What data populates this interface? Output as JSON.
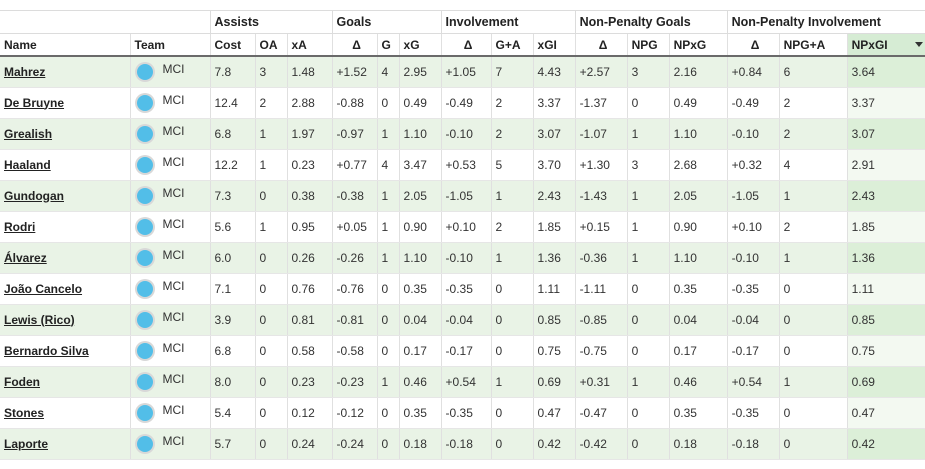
{
  "header_groups": {
    "assists": "Assists",
    "goals": "Goals",
    "involvement": "Involvement",
    "npg": "Non-Penalty Goals",
    "npi": "Non-Penalty Involvement"
  },
  "columns": {
    "name": "Name",
    "team": "Team",
    "cost": "Cost",
    "oa": "OA",
    "xa": "xA",
    "g_delta": "Δ",
    "g": "G",
    "xg": "xG",
    "i_delta": "Δ",
    "ga": "G+A",
    "xgi": "xGI",
    "npg_delta": "Δ",
    "npg": "NPG",
    "npxg": "NPxG",
    "npi_delta": "Δ",
    "npga": "NPG+A",
    "npxgi": "NPxGI"
  },
  "sorted_column": "NPxGI",
  "team_badge_color": "#52bee8",
  "rows": [
    {
      "name": "Mahrez",
      "team": "MCI",
      "cost": "7.8",
      "oa": "3",
      "xa": "1.48",
      "g_delta": "+1.52",
      "g": "4",
      "xg": "2.95",
      "i_delta": "+1.05",
      "ga": "7",
      "xgi": "4.43",
      "npg_delta": "+2.57",
      "npg": "3",
      "npxg": "2.16",
      "npi_delta": "+0.84",
      "npga": "6",
      "npxgi": "3.64"
    },
    {
      "name": "De Bruyne",
      "team": "MCI",
      "cost": "12.4",
      "oa": "2",
      "xa": "2.88",
      "g_delta": "-0.88",
      "g": "0",
      "xg": "0.49",
      "i_delta": "-0.49",
      "ga": "2",
      "xgi": "3.37",
      "npg_delta": "-1.37",
      "npg": "0",
      "npxg": "0.49",
      "npi_delta": "-0.49",
      "npga": "2",
      "npxgi": "3.37"
    },
    {
      "name": "Grealish",
      "team": "MCI",
      "cost": "6.8",
      "oa": "1",
      "xa": "1.97",
      "g_delta": "-0.97",
      "g": "1",
      "xg": "1.10",
      "i_delta": "-0.10",
      "ga": "2",
      "xgi": "3.07",
      "npg_delta": "-1.07",
      "npg": "1",
      "npxg": "1.10",
      "npi_delta": "-0.10",
      "npga": "2",
      "npxgi": "3.07"
    },
    {
      "name": "Haaland",
      "team": "MCI",
      "cost": "12.2",
      "oa": "1",
      "xa": "0.23",
      "g_delta": "+0.77",
      "g": "4",
      "xg": "3.47",
      "i_delta": "+0.53",
      "ga": "5",
      "xgi": "3.70",
      "npg_delta": "+1.30",
      "npg": "3",
      "npxg": "2.68",
      "npi_delta": "+0.32",
      "npga": "4",
      "npxgi": "2.91"
    },
    {
      "name": "Gundogan",
      "team": "MCI",
      "cost": "7.3",
      "oa": "0",
      "xa": "0.38",
      "g_delta": "-0.38",
      "g": "1",
      "xg": "2.05",
      "i_delta": "-1.05",
      "ga": "1",
      "xgi": "2.43",
      "npg_delta": "-1.43",
      "npg": "1",
      "npxg": "2.05",
      "npi_delta": "-1.05",
      "npga": "1",
      "npxgi": "2.43"
    },
    {
      "name": "Rodri",
      "team": "MCI",
      "cost": "5.6",
      "oa": "1",
      "xa": "0.95",
      "g_delta": "+0.05",
      "g": "1",
      "xg": "0.90",
      "i_delta": "+0.10",
      "ga": "2",
      "xgi": "1.85",
      "npg_delta": "+0.15",
      "npg": "1",
      "npxg": "0.90",
      "npi_delta": "+0.10",
      "npga": "2",
      "npxgi": "1.85"
    },
    {
      "name": "Álvarez",
      "team": "MCI",
      "cost": "6.0",
      "oa": "0",
      "xa": "0.26",
      "g_delta": "-0.26",
      "g": "1",
      "xg": "1.10",
      "i_delta": "-0.10",
      "ga": "1",
      "xgi": "1.36",
      "npg_delta": "-0.36",
      "npg": "1",
      "npxg": "1.10",
      "npi_delta": "-0.10",
      "npga": "1",
      "npxgi": "1.36"
    },
    {
      "name": "João Cancelo",
      "team": "MCI",
      "cost": "7.1",
      "oa": "0",
      "xa": "0.76",
      "g_delta": "-0.76",
      "g": "0",
      "xg": "0.35",
      "i_delta": "-0.35",
      "ga": "0",
      "xgi": "1.11",
      "npg_delta": "-1.11",
      "npg": "0",
      "npxg": "0.35",
      "npi_delta": "-0.35",
      "npga": "0",
      "npxgi": "1.11"
    },
    {
      "name": "Lewis (Rico)",
      "team": "MCI",
      "cost": "3.9",
      "oa": "0",
      "xa": "0.81",
      "g_delta": "-0.81",
      "g": "0",
      "xg": "0.04",
      "i_delta": "-0.04",
      "ga": "0",
      "xgi": "0.85",
      "npg_delta": "-0.85",
      "npg": "0",
      "npxg": "0.04",
      "npi_delta": "-0.04",
      "npga": "0",
      "npxgi": "0.85"
    },
    {
      "name": "Bernardo Silva",
      "team": "MCI",
      "cost": "6.8",
      "oa": "0",
      "xa": "0.58",
      "g_delta": "-0.58",
      "g": "0",
      "xg": "0.17",
      "i_delta": "-0.17",
      "ga": "0",
      "xgi": "0.75",
      "npg_delta": "-0.75",
      "npg": "0",
      "npxg": "0.17",
      "npi_delta": "-0.17",
      "npga": "0",
      "npxgi": "0.75"
    },
    {
      "name": "Foden",
      "team": "MCI",
      "cost": "8.0",
      "oa": "0",
      "xa": "0.23",
      "g_delta": "-0.23",
      "g": "1",
      "xg": "0.46",
      "i_delta": "+0.54",
      "ga": "1",
      "xgi": "0.69",
      "npg_delta": "+0.31",
      "npg": "1",
      "npxg": "0.46",
      "npi_delta": "+0.54",
      "npga": "1",
      "npxgi": "0.69"
    },
    {
      "name": "Stones",
      "team": "MCI",
      "cost": "5.4",
      "oa": "0",
      "xa": "0.12",
      "g_delta": "-0.12",
      "g": "0",
      "xg": "0.35",
      "i_delta": "-0.35",
      "ga": "0",
      "xgi": "0.47",
      "npg_delta": "-0.47",
      "npg": "0",
      "npxg": "0.35",
      "npi_delta": "-0.35",
      "npga": "0",
      "npxgi": "0.47"
    },
    {
      "name": "Laporte",
      "team": "MCI",
      "cost": "5.7",
      "oa": "0",
      "xa": "0.24",
      "g_delta": "-0.24",
      "g": "0",
      "xg": "0.18",
      "i_delta": "-0.18",
      "ga": "0",
      "xgi": "0.42",
      "npg_delta": "-0.42",
      "npg": "0",
      "npxg": "0.18",
      "npi_delta": "-0.18",
      "npga": "0",
      "npxgi": "0.42"
    }
  ]
}
